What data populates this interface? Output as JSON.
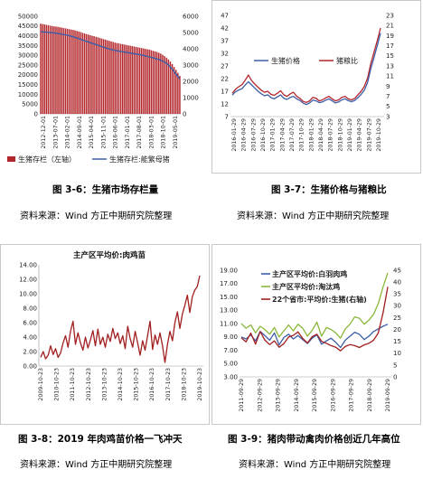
{
  "captions": {
    "c1": "图 3-6：生猪市场存栏量",
    "c2": "图 3-7：生猪价格与猪粮比",
    "c3": "图 3-8：2019 年肉鸡苗价格一飞冲天",
    "c4": "图 3-9：猪肉带动禽肉价格创近几年高位"
  },
  "sources": {
    "s1": "资料来源：Wind   方正中期研究院整理",
    "s2": "资料来源：Wind   方正中期研究院整理",
    "s3": "资料来源：Wind   方正中期研究院整理",
    "s4": "资料来源：Wind   方正中期研究院整理"
  },
  "colors": {
    "red": "#b3262b",
    "blue": "#3c5ea8",
    "green": "#8bb73b",
    "darkred": "#a11f1f"
  },
  "chart_data": [
    {
      "type": "bar",
      "series": [
        {
          "name": "生猪存栏（左轴）",
          "values": [
            46200,
            46000,
            45800,
            45600,
            45400,
            45200,
            45000,
            44800,
            44700,
            44600,
            44400,
            44200,
            44000,
            43800,
            43600,
            43400,
            43200,
            43000,
            42800,
            42500,
            42200,
            41900,
            41500,
            41200,
            40900,
            40600,
            40300,
            40000,
            39800,
            39500,
            39200,
            38900,
            38600,
            38300,
            38000,
            37700,
            37400,
            37100,
            36800,
            36500,
            36300,
            36100,
            35900,
            35700,
            35500,
            35300,
            35100,
            34900,
            34700,
            34500,
            34300,
            34100,
            33900,
            33700,
            33500,
            33300,
            33100,
            32900,
            32600,
            32300,
            32000,
            31700,
            31300,
            30900,
            30300,
            29600,
            28800,
            27900,
            26800,
            25500,
            24000,
            22500,
            21000,
            19500
          ]
        },
        {
          "name": "生猪存栏:能繁母猪",
          "axis": "right",
          "values": [
            5050,
            5040,
            5030,
            5020,
            5010,
            5000,
            4990,
            4980,
            4960,
            4940,
            4920,
            4900,
            4880,
            4860,
            4830,
            4800,
            4770,
            4740,
            4700,
            4660,
            4620,
            4580,
            4540,
            4500,
            4460,
            4420,
            4380,
            4340,
            4300,
            4260,
            4220,
            4180,
            4140,
            4100,
            4060,
            4020,
            3990,
            3960,
            3930,
            3900,
            3880,
            3860,
            3840,
            3820,
            3800,
            3780,
            3760,
            3740,
            3720,
            3700,
            3680,
            3660,
            3640,
            3620,
            3590,
            3560,
            3530,
            3500,
            3470,
            3440,
            3410,
            3380,
            3350,
            3300,
            3250,
            3180,
            3100,
            3000,
            2880,
            2750,
            2600,
            2450,
            2300,
            2150
          ]
        }
      ],
      "x_tick_labels": [
        "2012-12-01",
        "2013-07-01",
        "2014-02-01",
        "2014-09-01",
        "2015-04-01",
        "2015-11-01",
        "2016-06-01",
        "2017-01-01",
        "2017-08-01",
        "2018-03-01",
        "2018-10-01",
        "2019-05-01"
      ],
      "y_left_ticks": [
        "0",
        "5000",
        "10000",
        "15000",
        "20000",
        "25000",
        "30000",
        "35000",
        "40000",
        "45000",
        "50000"
      ],
      "y_right_ticks": [
        "0",
        "1000",
        "2000",
        "3000",
        "4000",
        "5000",
        "6000"
      ],
      "ylim_left": [
        0,
        50000
      ],
      "ylim_right": [
        0,
        6000
      ]
    },
    {
      "type": "line",
      "series": [
        {
          "name": "生猪价格",
          "values": [
            15.5,
            16.8,
            17.5,
            18.0,
            19.5,
            20.8,
            19.5,
            18.2,
            17.0,
            16.0,
            15.2,
            15.6,
            14.5,
            14.0,
            14.8,
            15.6,
            14.2,
            13.8,
            14.6,
            15.0,
            14.0,
            13.4,
            12.3,
            11.8,
            12.4,
            13.5,
            13.2,
            12.5,
            12.8,
            13.5,
            14.0,
            13.2,
            12.4,
            12.8,
            13.6,
            14.0,
            13.3,
            12.9,
            13.4,
            14.5,
            15.8,
            17.5,
            20.5,
            26.0,
            30.5,
            35.0,
            40.0
          ]
        },
        {
          "name": "猪粮比",
          "axis": "right",
          "values": [
            7.6,
            8.4,
            8.9,
            9.3,
            10.2,
            11.2,
            10.1,
            9.4,
            8.8,
            8.2,
            7.8,
            8.0,
            7.4,
            7.2,
            7.6,
            8.1,
            7.3,
            7.0,
            7.5,
            7.8,
            7.0,
            6.6,
            6.0,
            5.8,
            6.1,
            6.8,
            6.6,
            6.1,
            6.3,
            6.7,
            7.0,
            6.5,
            6.1,
            6.3,
            6.8,
            7.0,
            6.5,
            6.3,
            6.6,
            7.3,
            8.0,
            9.0,
            10.6,
            13.5,
            15.8,
            18.0,
            20.5
          ]
        }
      ],
      "x_tick_labels": [
        "2016-01-29",
        "2016-04-29",
        "2016-07-29",
        "2016-10-29",
        "2017-01-29",
        "2017-04-29",
        "2017-07-29",
        "2017-10-29",
        "2018-01-29",
        "2018-04-29",
        "2018-07-29",
        "2018-10-29",
        "2019-01-29",
        "2019-04-29",
        "2019-07-29",
        "2019-10-29"
      ],
      "y_left_ticks": [
        "7",
        "12",
        "17",
        "22",
        "27",
        "32",
        "37",
        "42",
        "47"
      ],
      "y_right_ticks": [
        "3",
        "5",
        "7",
        "9",
        "11",
        "13",
        "15",
        "17",
        "19",
        "21",
        "23"
      ],
      "ylim_left": [
        7,
        47
      ],
      "ylim_right": [
        3,
        23
      ]
    },
    {
      "type": "line",
      "title": "主产区平均价:肉鸡苗",
      "series": [
        {
          "name": "主产区平均价:肉鸡苗",
          "values": [
            1.2,
            2.0,
            1.0,
            1.5,
            2.8,
            1.6,
            2.4,
            1.2,
            1.8,
            3.2,
            4.2,
            2.6,
            4.8,
            6.2,
            3.0,
            4.6,
            3.2,
            2.2,
            4.0,
            2.5,
            3.6,
            4.9,
            2.8,
            5.1,
            3.0,
            4.0,
            2.6,
            4.4,
            3.4,
            5.2,
            3.8,
            4.6,
            3.1,
            4.2,
            2.4,
            5.5,
            3.8,
            2.6,
            4.8,
            3.2,
            1.5,
            3.5,
            2.2,
            4.2,
            6.2,
            2.3,
            4.3,
            3.0,
            4.6,
            2.8,
            0.5,
            3.0,
            4.8,
            3.5,
            6.0,
            7.5,
            5.2,
            7.2,
            8.4,
            9.8,
            7.4,
            9.6,
            10.5,
            11.0,
            12.5
          ]
        }
      ],
      "x_tick_labels": [
        "2009-10-23",
        "2010-10-23",
        "2011-10-23",
        "2012-10-23",
        "2013-10-23",
        "2014-10-23",
        "2015-10-23",
        "2016-10-23",
        "2017-10-23",
        "2018-10-23",
        "2019-10-23"
      ],
      "y_ticks": [
        "0.00",
        "2.00",
        "4.00",
        "6.00",
        "8.00",
        "10.00",
        "12.00",
        "14.00"
      ],
      "ylim": [
        0,
        14
      ]
    },
    {
      "type": "line",
      "series": [
        {
          "name": "主产区平均价:白羽肉鸡",
          "values": [
            9.0,
            8.7,
            9.3,
            8.4,
            9.8,
            9.2,
            8.5,
            9.6,
            7.8,
            8.9,
            9.4,
            8.7,
            9.2,
            8.6,
            8.0,
            8.8,
            9.3,
            7.9,
            8.4,
            8.8,
            8.2,
            7.4,
            8.5,
            9.1,
            9.7,
            9.4,
            8.6,
            9.1,
            9.8,
            10.2,
            10.6,
            10.9
          ]
        },
        {
          "name": "主产区平均价:淘汰鸡",
          "values": [
            11.0,
            10.3,
            10.8,
            9.6,
            10.6,
            10.1,
            9.4,
            10.4,
            9.0,
            9.9,
            10.8,
            9.9,
            10.9,
            10.3,
            9.1,
            10.0,
            11.2,
            9.1,
            10.4,
            10.1,
            9.6,
            8.8,
            10.2,
            10.9,
            12.0,
            11.8,
            10.9,
            11.5,
            12.4,
            14.0,
            16.5,
            18.6
          ]
        },
        {
          "name": "22个省市:平均价:生猪(右轴)",
          "axis": "right",
          "values": [
            16.5,
            14.8,
            18.5,
            13.8,
            19.2,
            15.5,
            13.6,
            15.2,
            12.5,
            14.0,
            16.8,
            17.5,
            19.0,
            16.2,
            14.3,
            17.0,
            18.0,
            15.0,
            14.2,
            13.2,
            12.5,
            11.0,
            12.8,
            13.6,
            13.2,
            12.4,
            13.5,
            14.2,
            15.5,
            18.5,
            27.0,
            38.0
          ]
        }
      ],
      "x_tick_labels": [
        "2011-09-29",
        "2012-09-29",
        "2013-09-29",
        "2014-09-29",
        "2015-09-29",
        "2016-09-29",
        "2017-09-29",
        "2018-09-29",
        "2019-09-29"
      ],
      "y_left_ticks": [
        "3.00",
        "5.00",
        "7.00",
        "9.00",
        "11.00",
        "13.00",
        "15.00",
        "17.00",
        "19.00"
      ],
      "y_right_ticks": [
        "0",
        "5",
        "10",
        "15",
        "20",
        "25",
        "30",
        "35",
        "40",
        "45"
      ],
      "ylim_left": [
        3,
        19
      ],
      "ylim_right": [
        0,
        45
      ]
    }
  ]
}
